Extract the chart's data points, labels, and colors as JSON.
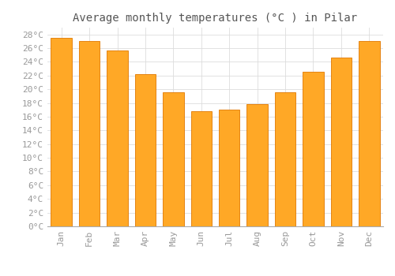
{
  "title": "Average monthly temperatures (°C ) in Pilar",
  "months": [
    "Jan",
    "Feb",
    "Mar",
    "Apr",
    "May",
    "Jun",
    "Jul",
    "Aug",
    "Sep",
    "Oct",
    "Nov",
    "Dec"
  ],
  "values": [
    27.5,
    27.0,
    25.7,
    22.2,
    19.6,
    16.8,
    17.0,
    17.8,
    19.6,
    22.5,
    24.6,
    27.0
  ],
  "bar_color": "#FFA826",
  "bar_edge_color": "#E07800",
  "background_color": "#FFFFFF",
  "grid_color": "#DDDDDD",
  "ylim": [
    0,
    29
  ],
  "yticks": [
    0,
    2,
    4,
    6,
    8,
    10,
    12,
    14,
    16,
    18,
    20,
    22,
    24,
    26,
    28
  ],
  "title_fontsize": 10,
  "tick_fontsize": 8,
  "tick_color": "#999999",
  "title_color": "#555555",
  "font_family": "monospace"
}
